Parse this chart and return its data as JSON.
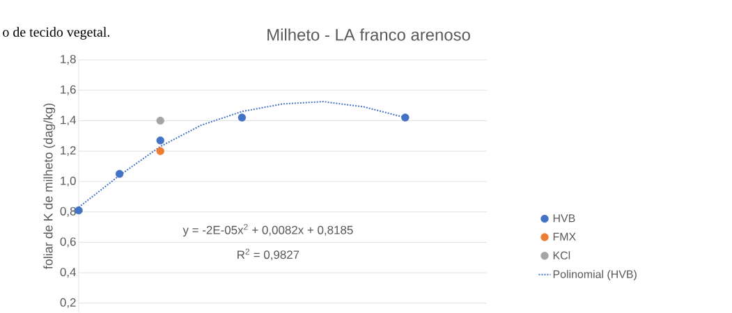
{
  "chart_data": {
    "type": "scatter",
    "title": "Milheto  - LA franco arenoso",
    "ylabel": "foliar de K de milheto (dag/kg)",
    "annotations": [
      "o de tecido vegetal.",
      "y = -2E-05x$^{2}$ + 0,0082x + 0,8185",
      "R$^{2}$ = 0,9827"
    ],
    "categories": [
      null,
      null,
      null,
      null,
      null,
      null,
      null,
      null,
      null,
      null,
      null
    ],
    "ylim": [
      0.14,
      1.8
    ],
    "yticks": [
      {
        "value": 0.2,
        "label": "0,2"
      },
      {
        "value": 0.4,
        "label": "0,4"
      },
      {
        "value": 0.6,
        "label": "0,6"
      },
      {
        "value": 0.8,
        "label": "0,8"
      },
      {
        "value": 1.0,
        "label": "1,0"
      },
      {
        "value": 1.2,
        "label": "1,2"
      },
      {
        "value": 1.4,
        "label": "1,4"
      },
      {
        "value": 1.6,
        "label": "1,6"
      },
      {
        "value": 1.8,
        "label": "1,8"
      }
    ],
    "tick_labels": "y",
    "grid": true,
    "legend": "right",
    "marker": "circle",
    "series": [
      {
        "name": "HVB",
        "color": "#4472c4",
        "values": [
          0.81,
          1.05,
          1.27,
          null,
          1.42,
          null,
          null,
          null,
          1.42,
          null,
          null
        ]
      },
      {
        "name": "FMX",
        "color": "#ed7d31",
        "values": [
          null,
          null,
          1.2,
          null,
          null,
          null,
          null,
          null,
          null,
          null,
          null
        ]
      },
      {
        "name": "KCl",
        "color": "#a5a5a5",
        "values": [
          null,
          null,
          1.4,
          null,
          null,
          null,
          null,
          null,
          null,
          null,
          null
        ]
      },
      {
        "name": "Polinomial (HVB)",
        "type": "line",
        "line_style": "dotted",
        "marker": "none",
        "color": "#4472c4",
        "values": [
          0.83,
          1.04,
          1.23,
          1.37,
          1.46,
          1.51,
          1.525,
          1.49,
          1.42,
          null,
          null
        ]
      }
    ]
  }
}
